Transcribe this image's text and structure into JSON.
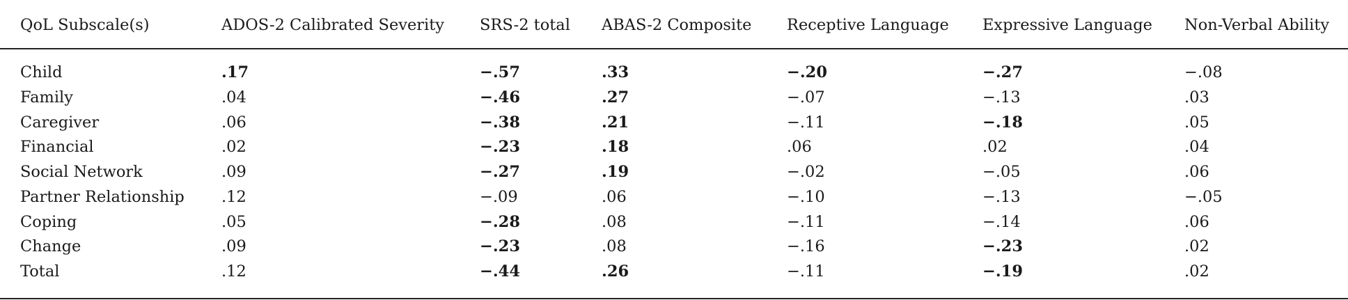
{
  "table": {
    "headers": [
      "QoL Subscale(s)",
      "ADOS-2 Calibrated Severity",
      "SRS-2 total",
      "ABAS-2 Composite",
      "Receptive Language",
      "Expressive Language",
      "Non-Verbal Ability"
    ],
    "rows": [
      {
        "label": "Child",
        "cells": [
          {
            "v": ".17",
            "b": true
          },
          {
            "v": "−.57",
            "b": true
          },
          {
            "v": ".33",
            "b": true
          },
          {
            "v": "−.20",
            "b": true
          },
          {
            "v": "−.27",
            "b": true
          },
          {
            "v": "−.08",
            "b": false
          }
        ]
      },
      {
        "label": "Family",
        "cells": [
          {
            "v": ".04",
            "b": false
          },
          {
            "v": "−.46",
            "b": true
          },
          {
            "v": ".27",
            "b": true
          },
          {
            "v": "−.07",
            "b": false
          },
          {
            "v": "−.13",
            "b": false
          },
          {
            "v": ".03",
            "b": false
          }
        ]
      },
      {
        "label": "Caregiver",
        "cells": [
          {
            "v": ".06",
            "b": false
          },
          {
            "v": "−.38",
            "b": true
          },
          {
            "v": ".21",
            "b": true
          },
          {
            "v": "−.11",
            "b": false
          },
          {
            "v": "−.18",
            "b": true
          },
          {
            "v": ".05",
            "b": false
          }
        ]
      },
      {
        "label": "Financial",
        "cells": [
          {
            "v": ".02",
            "b": false
          },
          {
            "v": "−.23",
            "b": true
          },
          {
            "v": ".18",
            "b": true
          },
          {
            "v": ".06",
            "b": false
          },
          {
            "v": ".02",
            "b": false
          },
          {
            "v": ".04",
            "b": false
          }
        ]
      },
      {
        "label": "Social Network",
        "cells": [
          {
            "v": ".09",
            "b": false
          },
          {
            "v": "−.27",
            "b": true
          },
          {
            "v": ".19",
            "b": true
          },
          {
            "v": "−.02",
            "b": false
          },
          {
            "v": "−.05",
            "b": false
          },
          {
            "v": ".06",
            "b": false
          }
        ]
      },
      {
        "label": "Partner Relationship",
        "cells": [
          {
            "v": ".12",
            "b": false
          },
          {
            "v": "−.09",
            "b": false
          },
          {
            "v": ".06",
            "b": false
          },
          {
            "v": "−.10",
            "b": false
          },
          {
            "v": "−.13",
            "b": false
          },
          {
            "v": "−.05",
            "b": false
          }
        ]
      },
      {
        "label": "Coping",
        "cells": [
          {
            "v": ".05",
            "b": false
          },
          {
            "v": "−.28",
            "b": true
          },
          {
            "v": ".08",
            "b": false
          },
          {
            "v": "−.11",
            "b": false
          },
          {
            "v": "−.14",
            "b": false
          },
          {
            "v": ".06",
            "b": false
          }
        ]
      },
      {
        "label": "Change",
        "cells": [
          {
            "v": ".09",
            "b": false
          },
          {
            "v": "−.23",
            "b": true
          },
          {
            "v": ".08",
            "b": false
          },
          {
            "v": "−.16",
            "b": false
          },
          {
            "v": "−.23",
            "b": true
          },
          {
            "v": ".02",
            "b": false
          }
        ]
      },
      {
        "label": "Total",
        "cells": [
          {
            "v": ".12",
            "b": false
          },
          {
            "v": "−.44",
            "b": true
          },
          {
            "v": ".26",
            "b": true
          },
          {
            "v": "−.11",
            "b": false
          },
          {
            "v": "−.19",
            "b": true
          },
          {
            "v": ".02",
            "b": false
          }
        ]
      }
    ]
  }
}
